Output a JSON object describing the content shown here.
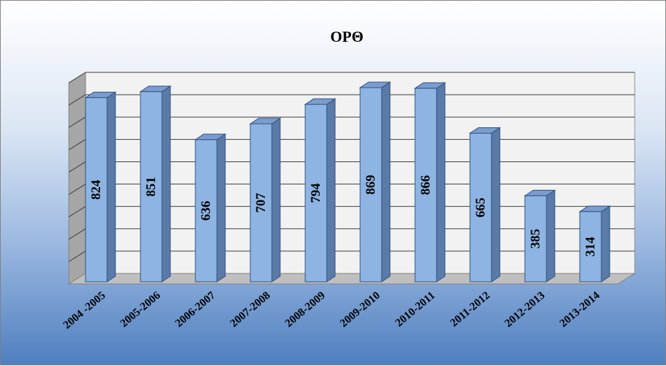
{
  "chart_data": {
    "type": "bar",
    "title": "ΟΡΘ",
    "categories": [
      "2004 -2005",
      "2005-2006",
      "2006-2007",
      "2007-2008",
      "2008-2009",
      "2009-2010",
      "2010-2011",
      "2011-2012",
      "2012-2013",
      "2013-2014"
    ],
    "values": [
      824,
      851,
      636,
      707,
      794,
      869,
      866,
      665,
      385,
      314
    ],
    "ylim": [
      0,
      900
    ],
    "grid": true,
    "colors": {
      "bar_front": "#8db4e2",
      "bar_side": "#5a7aa8",
      "bar_top": "#7c9ccd",
      "wall": "#f2f2f2",
      "floor": "#bfbfbf"
    }
  }
}
